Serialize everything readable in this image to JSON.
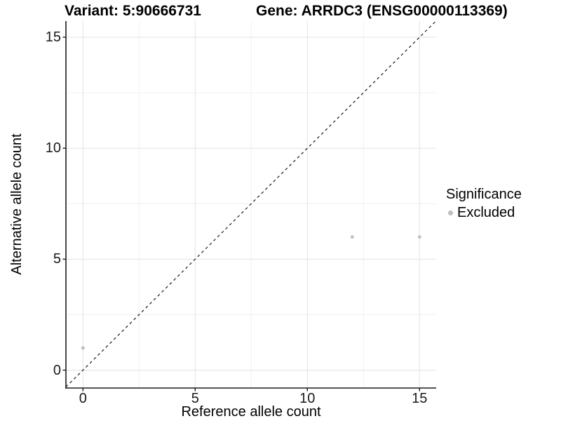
{
  "chart_data": {
    "type": "scatter",
    "title_left": "Variant: 5:90666731",
    "title_right": "Gene: ARRDC3 (ENSG00000113369)",
    "xlabel": "Reference allele count",
    "ylabel": "Alternative allele count",
    "x_ticks": [
      0,
      5,
      10,
      15
    ],
    "y_ticks": [
      0,
      5,
      10,
      15
    ],
    "x_minor_ticks": [
      2.5,
      7.5,
      12.5
    ],
    "y_minor_ticks": [
      2.5,
      7.5,
      12.5
    ],
    "xlim": [
      -0.76,
      15.74
    ],
    "ylim": [
      -0.8,
      15.73
    ],
    "grid": "major-and-minor",
    "points": [
      {
        "x": 0,
        "y": 1,
        "significance": "Excluded"
      },
      {
        "x": 12,
        "y": 6,
        "significance": "Excluded"
      },
      {
        "x": 15,
        "y": 6,
        "significance": "Excluded"
      }
    ],
    "reference_line": {
      "slope": 1,
      "intercept": 0,
      "style": "dashed",
      "color": "#1a1a1a"
    },
    "legend": {
      "title": "Significance",
      "position": "right",
      "items": [
        {
          "label": "Excluded",
          "color": "#bebebe"
        }
      ]
    },
    "colors": {
      "point": "#bebebe",
      "grid_major": "#e3e3e3",
      "grid_minor": "#f0f0f0",
      "axis_line": "#1a1a1a",
      "tick_text": "#1a1a1a",
      "background": "#ffffff"
    }
  }
}
